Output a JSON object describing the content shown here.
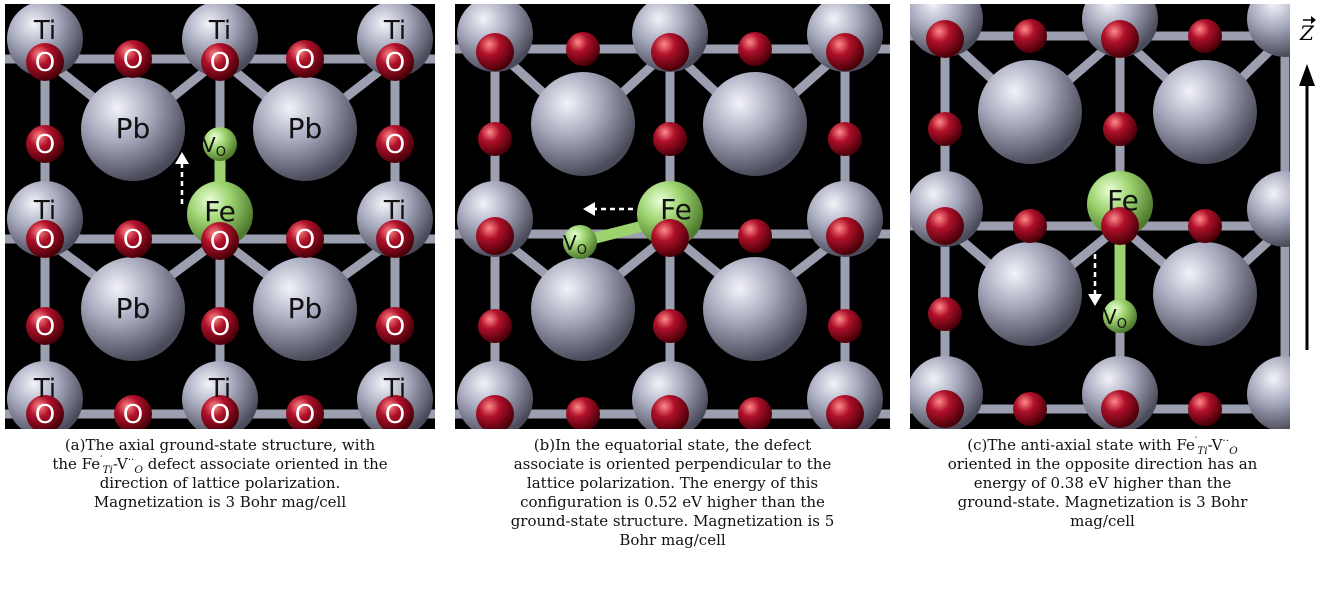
{
  "colors": {
    "background": "#000000",
    "pb_ti": "#a9abbf",
    "oxygen": "#8a0a1e",
    "fe": "#9cd36e",
    "bond": "#9c9fb0"
  },
  "axis": {
    "label": "Z"
  },
  "panels": [
    {
      "id": "a",
      "labels": {
        "ti": "Ti",
        "o": "O",
        "pb": "Pb",
        "fe": "Fe",
        "vo_main": "V",
        "vo_sub": "O"
      },
      "caption": {
        "prefix": "(a)",
        "line1": "The axial ground-state structure, with",
        "line2_before": "the Fe",
        "line2_sup": "′",
        "line2_sub": "Ti",
        "line2_mid": "-V",
        "line2_sup2": "··",
        "line2_sub2": "O",
        "line2_after": " defect associate oriented in the",
        "line3": "direction of lattice polarization.",
        "line4": "Magnetization is 3 Bohr mag/cell"
      }
    },
    {
      "id": "b",
      "labels": {
        "fe": "Fe",
        "vo_main": "V",
        "vo_sub": "O"
      },
      "caption": {
        "prefix": "(b)",
        "line1": "In the equatorial state, the defect",
        "line2": "associate is oriented perpendicular to the",
        "line3": "lattice polarization. The energy of this",
        "line4": "configuration is 0.52 eV higher than the",
        "line5": "ground-state structure. Magnetization is 5",
        "line6": "Bohr mag/cell"
      }
    },
    {
      "id": "c",
      "labels": {
        "fe": "Fe",
        "vo_main": "V",
        "vo_sub": "O"
      },
      "caption": {
        "prefix": "(c)",
        "line1_before": "The anti-axial state with Fe",
        "line1_sup": "′",
        "line1_sub": "Ti",
        "line1_mid": "-V",
        "line1_sup2": "··",
        "line1_sub2": "O",
        "line2": "oriented in the opposite direction has an",
        "line3": "energy of 0.38 eV higher than the",
        "line4": "ground-state. Magnetization is 3 Bohr",
        "line5": "mag/cell"
      }
    }
  ]
}
